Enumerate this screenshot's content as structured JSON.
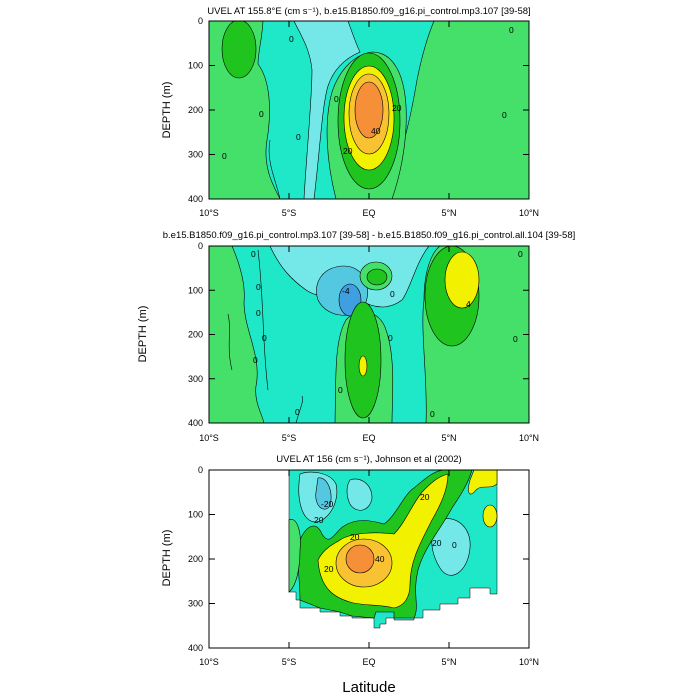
{
  "chart_data": [
    {
      "type": "heatmap",
      "title": "UVEL AT 155.8°E (cm s⁻¹), b.e15.B1850.f09_g16.pi_control.mp3.107 [39-58]",
      "ylabel": "DEPTH (m)",
      "xlabel": "",
      "xlim": [
        -10,
        10
      ],
      "ylim": [
        400,
        0
      ],
      "x_ticks": [
        "10°S",
        "5°S",
        "EQ",
        "5°N",
        "10°N"
      ],
      "y_ticks": [
        "0",
        "100",
        "200",
        "300",
        "400"
      ],
      "contour_labels": [
        "0",
        "0",
        "0",
        "0",
        "0",
        "0",
        "20",
        "20",
        "40",
        "0"
      ],
      "core": {
        "lat": 0,
        "depth": 210,
        "max_value": 55
      },
      "grid": false
    },
    {
      "type": "heatmap",
      "title": "b.e15.B1850.f09_g16.pi_control.mp3.107 [39-58] - b.e15.B1850.f09_g16.pi_control.all.104 [39-58]",
      "ylabel": "DEPTH (m)",
      "xlabel": "",
      "xlim": [
        -10,
        10
      ],
      "ylim": [
        400,
        0
      ],
      "x_ticks": [
        "10°S",
        "5°S",
        "EQ",
        "5°N",
        "10°N"
      ],
      "y_ticks": [
        "0",
        "100",
        "200",
        "300",
        "400"
      ],
      "contour_labels": [
        "0",
        "0",
        "0",
        "0",
        "0",
        "0",
        "0",
        "0",
        "0",
        "0",
        "0",
        "-4",
        "4",
        "0"
      ],
      "grid": false
    },
    {
      "type": "heatmap",
      "title": "UVEL AT 156 (cm s⁻¹), Johnson et al (2002)",
      "ylabel": "DEPTH (m)",
      "xlabel": "Latitude",
      "xlim": [
        -10,
        10
      ],
      "ylim": [
        400,
        0
      ],
      "x_ticks": [
        "10°S",
        "5°S",
        "EQ",
        "5°N",
        "10°N"
      ],
      "y_ticks": [
        "0",
        "100",
        "200",
        "300",
        "400"
      ],
      "contour_labels": [
        "-20",
        "20",
        "20",
        "20",
        "20",
        "40",
        "20",
        "0"
      ],
      "data_extent": {
        "lat_min": -5,
        "lat_max": 8,
        "depth_max": 350
      },
      "core": {
        "lat": 0,
        "depth": 200,
        "max_value": 50
      },
      "grid": false
    }
  ],
  "palette": {
    "neg_strong": "#3f9fe0",
    "neg": "#54c8e0",
    "neg_weak": "#74e8e8",
    "zero": "#1ee8c8",
    "pos_weak": "#44e06a",
    "pos": "#20c41e",
    "pos_mid": "#f2f200",
    "pos_high": "#f9c233",
    "pos_peak": "#f59038",
    "line": "#000000"
  }
}
